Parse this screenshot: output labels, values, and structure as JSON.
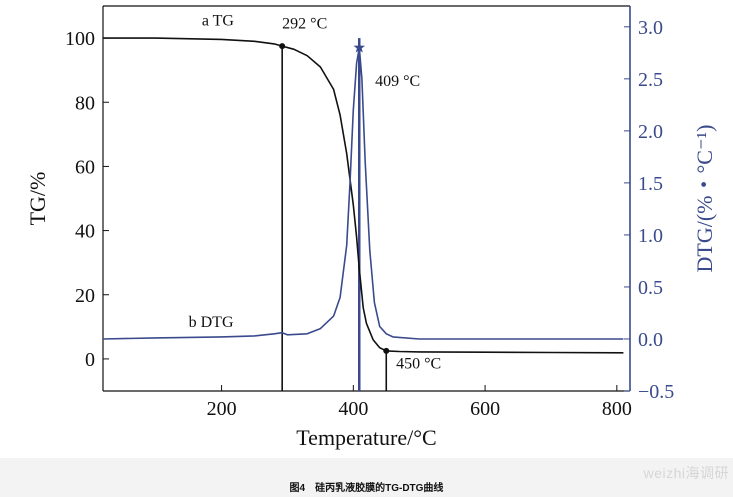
{
  "chart_data": {
    "type": "line",
    "xlabel": "Temperature/°C",
    "ylabel_left": "TG/%",
    "ylabel_right": "DTG/(%・°C⁻¹)",
    "xlim": [
      20,
      820
    ],
    "ylim_left": [
      -10,
      110
    ],
    "ylim_right": [
      -0.5,
      3.2
    ],
    "x_ticks": [
      200,
      400,
      600,
      800
    ],
    "y_left_ticks": [
      0,
      20,
      40,
      60,
      80,
      100
    ],
    "y_right_ticks": [
      -0.5,
      0.0,
      0.5,
      1.0,
      1.5,
      2.0,
      2.5,
      3.0
    ],
    "y_right_tick_labels": [
      "−0.5",
      "0.0",
      "0.5",
      "1.0",
      "1.5",
      "2.0",
      "2.5",
      "3.0"
    ],
    "series": [
      {
        "name": "a TG",
        "axis": "left",
        "color": "#111111",
        "x": [
          20,
          100,
          200,
          250,
          280,
          292,
          310,
          330,
          350,
          370,
          380,
          390,
          400,
          405,
          409,
          415,
          420,
          430,
          440,
          450,
          470,
          500,
          600,
          700,
          810
        ],
        "y": [
          100,
          100,
          99.6,
          99,
          98.2,
          97.5,
          96.5,
          94.5,
          91,
          84,
          76,
          64,
          48,
          38,
          28,
          16,
          11,
          6,
          3.5,
          2.5,
          2.3,
          2.2,
          2.1,
          2.0,
          1.9
        ]
      },
      {
        "name": "b DTG",
        "axis": "right",
        "color": "#3a4a8c",
        "x": [
          20,
          100,
          200,
          250,
          280,
          292,
          300,
          330,
          350,
          370,
          380,
          390,
          395,
          400,
          405,
          409,
          413,
          418,
          425,
          432,
          440,
          450,
          460,
          500,
          600,
          700,
          810
        ],
        "y": [
          0.0,
          0.01,
          0.02,
          0.03,
          0.05,
          0.06,
          0.04,
          0.05,
          0.1,
          0.22,
          0.4,
          0.9,
          1.5,
          2.2,
          2.65,
          2.8,
          2.5,
          1.7,
          0.85,
          0.35,
          0.12,
          0.05,
          0.02,
          0.0,
          0.0,
          0.0,
          0.0
        ]
      }
    ],
    "annotations": [
      {
        "text": "a TG",
        "x": 170,
        "y": 104,
        "axis": "left"
      },
      {
        "text": "292 °C",
        "x": 292,
        "y": 103,
        "axis": "left"
      },
      {
        "text": "409 °C",
        "x": 433,
        "y": 85,
        "axis": "left"
      },
      {
        "text": "b DTG",
        "x": 150,
        "y": 10,
        "axis": "left"
      },
      {
        "text": "450 °C",
        "x": 465,
        "y": -3,
        "axis": "left"
      }
    ],
    "markers": [
      {
        "x": 292,
        "y": 97.5,
        "axis": "left",
        "color": "#111111"
      },
      {
        "x": 409,
        "y": 2.8,
        "axis": "right",
        "color": "#3a4a8c"
      },
      {
        "x": 450,
        "y": 2.5,
        "axis": "left",
        "color": "#111111"
      }
    ],
    "vlines": [
      {
        "x": 292,
        "from": -10,
        "to": 97.5,
        "axis": "left",
        "color": "#111111"
      },
      {
        "x": 409,
        "from": -10,
        "to": 100,
        "axis": "left",
        "color": "#3a4a8c"
      },
      {
        "x": 450,
        "from": -10,
        "to": 2.5,
        "axis": "left",
        "color": "#111111"
      }
    ]
  },
  "caption": "图4　硅丙乳液胶膜的TG-DTG曲线",
  "watermark": "weizhi海调研"
}
